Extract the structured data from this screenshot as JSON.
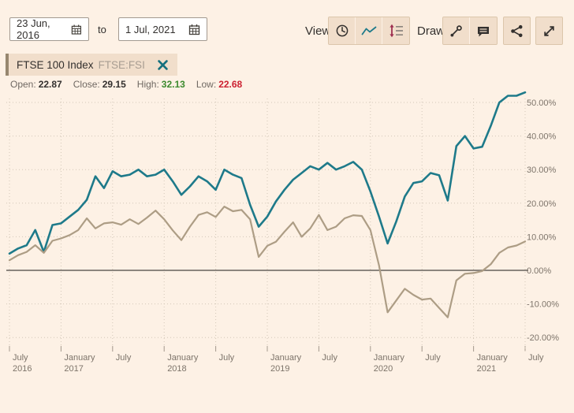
{
  "toolbar": {
    "date_from": "23 Jun, 2016",
    "to_label": "to",
    "date_to": "1 Jul, 2021",
    "view_label": "View",
    "draw_label": "Draw",
    "view_buttons": [
      {
        "icon": "clock-icon"
      },
      {
        "icon": "line-chart-icon"
      },
      {
        "icon": "range-lines-icon"
      }
    ],
    "draw_buttons": [
      {
        "icon": "trendline-icon"
      },
      {
        "icon": "annotation-icon"
      }
    ],
    "share_icon": "share-icon",
    "expand_icon": "expand-icon",
    "calendar_icon": "calendar-icon"
  },
  "tag": {
    "name": "FTSE 100 Index",
    "symbol": "FTSE:FSI",
    "close_icon": "close-icon"
  },
  "stats": {
    "open": {
      "label": "Open:",
      "value": "22.87"
    },
    "close": {
      "label": "Close:",
      "value": "29.15"
    },
    "high": {
      "label": "High:",
      "value": "32.13"
    },
    "low": {
      "label": "Low:",
      "value": "22.68"
    }
  },
  "colors": {
    "background": "#fdf1e5",
    "button_bg": "#f1decb",
    "button_border": "#dcc6ab",
    "teal_series": "#1e7a8a",
    "tan_series": "#ad9d85",
    "zero_line": "#8c857e",
    "gridline": "#d3c7b8",
    "axis_text": "#7d746a",
    "high_green": "#3c8a2e",
    "low_red": "#cc2030",
    "tag_bar": "#97876f"
  },
  "chart_data": {
    "type": "line",
    "x_unit": "month",
    "x_start": "July 2016",
    "x_end": "July 2021",
    "grid": true,
    "ylim": [
      -24,
      57
    ],
    "y_axis_side": "right",
    "y_ticks": [
      {
        "value": 50,
        "label": "50.00%"
      },
      {
        "value": 40,
        "label": "40.00%"
      },
      {
        "value": 30,
        "label": "30.00%"
      },
      {
        "value": 20,
        "label": "20.00%"
      },
      {
        "value": 10,
        "label": "10.00%"
      },
      {
        "value": 0,
        "label": "0.00%"
      },
      {
        "value": -10,
        "label": "-10.00%"
      },
      {
        "value": -20,
        "label": "-20.00%"
      }
    ],
    "x_tick_labels": [
      {
        "month": "July",
        "year": "2016"
      },
      {
        "month": "January",
        "year": "2017"
      },
      {
        "month": "July",
        "year": ""
      },
      {
        "month": "January",
        "year": "2018"
      },
      {
        "month": "July",
        "year": ""
      },
      {
        "month": "January",
        "year": "2019"
      },
      {
        "month": "July",
        "year": ""
      },
      {
        "month": "January",
        "year": "2020"
      },
      {
        "month": "July",
        "year": ""
      },
      {
        "month": "January",
        "year": "2021"
      },
      {
        "month": "July",
        "year": ""
      }
    ],
    "series": [
      {
        "id": "series-1",
        "label": "FTSE 100 Index",
        "color": "#1e7a8a",
        "width": 2.6,
        "values_pct": [
          5,
          6.5,
          7.5,
          12,
          5.5,
          13.5,
          14,
          16,
          18,
          21,
          28,
          24.5,
          29.5,
          28,
          28.5,
          30,
          28,
          28.5,
          30,
          26.5,
          22.5,
          25,
          28,
          26.5,
          24,
          30,
          28.5,
          27.5,
          19.5,
          13,
          16,
          20.5,
          24,
          27,
          29,
          31,
          30,
          32,
          30,
          31,
          32.3,
          30,
          23.5,
          16,
          8,
          14.5,
          22,
          26,
          26.5,
          29,
          28.3,
          20.8,
          37,
          40,
          36.3,
          36.8,
          43,
          50,
          52,
          52,
          53
        ]
      },
      {
        "id": "series-2",
        "label": "",
        "color": "#ad9d85",
        "width": 2.2,
        "values_pct": [
          3,
          4.5,
          5.5,
          7.5,
          5.2,
          8.8,
          9.5,
          10.5,
          12,
          15.5,
          12.5,
          14,
          14.3,
          13.6,
          15.2,
          13.8,
          15.7,
          17.8,
          15.2,
          11.9,
          9,
          13,
          16.5,
          17.3,
          15.9,
          19,
          17.6,
          18,
          15.2,
          4,
          7.3,
          8.5,
          11.5,
          14.3,
          10,
          12.5,
          16.5,
          12,
          13,
          15.5,
          16.4,
          16.2,
          12,
          1.5,
          -12.5,
          -9,
          -5.5,
          -7.3,
          -8.7,
          -8.4,
          -11.2,
          -14,
          -3,
          -1,
          -0.8,
          -0.2,
          1.8,
          5.2,
          6.8,
          7.4,
          8.6
        ]
      }
    ]
  }
}
